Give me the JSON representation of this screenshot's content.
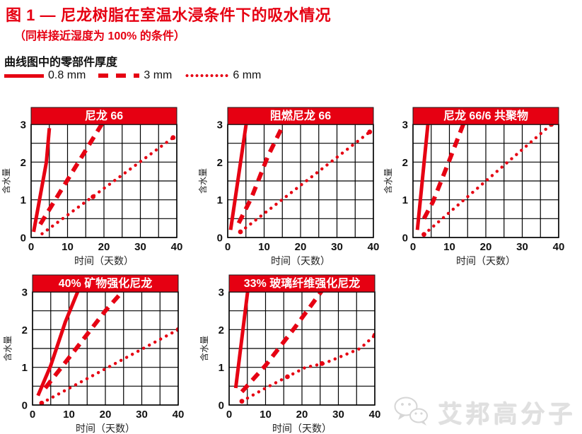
{
  "header": {
    "title": "图 1 — 尼龙树脂在室温水浸条件下的吸水情况",
    "subtitle": "（同样接近湿度为 100% 的条件）",
    "legend_title": "曲线图中的零部件厚度",
    "legend": [
      {
        "style": "solid",
        "label": "0.8 mm"
      },
      {
        "style": "dashed",
        "label": "3 mm"
      },
      {
        "style": "dotted",
        "label": "6 mm"
      }
    ]
  },
  "colors": {
    "accent": "#e60012",
    "text": "#111111",
    "grid": "#000000",
    "bar_text": "#ffffff",
    "watermark": "#e0e0e0"
  },
  "watermark": {
    "text": "艾邦高分子",
    "icon": "wechat-bubbles-icon"
  },
  "chart_data": [
    {
      "type": "line",
      "title": "尼龙 66",
      "xlabel": "时间（天数）",
      "ylabel": "含水量",
      "xlim": [
        0,
        40
      ],
      "ylim": [
        0,
        3
      ],
      "xticks": [
        0,
        10,
        20,
        30,
        40
      ],
      "yticks": [
        0,
        1,
        2,
        3
      ],
      "xgrid_step": 5,
      "ygrid_step": 0.5,
      "grid": true,
      "legend_position": "top-shared",
      "series": [
        {
          "name": "0.8 mm",
          "style": "solid",
          "points": [
            [
              0.7,
              0.15
            ],
            [
              4.2,
              2.0
            ],
            [
              5,
              2.9
            ]
          ]
        },
        {
          "name": "3 mm",
          "style": "dashed",
          "points": [
            [
              2.5,
              0.35
            ],
            [
              20,
              3.1
            ]
          ]
        },
        {
          "name": "6 mm",
          "style": "dotted",
          "points": [
            [
              3,
              0.1
            ],
            [
              39,
              2.65
            ]
          ],
          "markers": [
            [
              17,
              1.08
            ],
            [
              39,
              2.65
            ]
          ]
        }
      ]
    },
    {
      "type": "line",
      "title": "阻燃尼龙 66",
      "xlabel": "时间（天数）",
      "ylabel": "含水量",
      "xlim": [
        0,
        40
      ],
      "ylim": [
        0,
        3
      ],
      "xticks": [
        0,
        10,
        20,
        30,
        40
      ],
      "yticks": [
        0,
        1,
        2,
        3
      ],
      "xgrid_step": 5,
      "ygrid_step": 0.5,
      "grid": true,
      "legend_position": "top-shared",
      "series": [
        {
          "name": "0.8 mm",
          "style": "solid",
          "points": [
            [
              0.8,
              0.2
            ],
            [
              5.2,
              3.1
            ]
          ]
        },
        {
          "name": "3 mm",
          "style": "dashed",
          "points": [
            [
              3,
              0.38
            ],
            [
              6.5,
              1.05
            ],
            [
              11,
              2.15
            ],
            [
              15.8,
              3.1
            ]
          ]
        },
        {
          "name": "6 mm",
          "style": "dotted",
          "points": [
            [
              3.5,
              0.15
            ],
            [
              39,
              2.8
            ]
          ],
          "markers": [
            [
              3.5,
              0.15
            ],
            [
              39,
              2.8
            ]
          ]
        }
      ]
    },
    {
      "type": "line",
      "title": "尼龙 66/6 共聚物",
      "xlabel": "时间（天数）",
      "ylabel": "含水量",
      "xlim": [
        0,
        40
      ],
      "ylim": [
        0,
        3
      ],
      "xticks": [
        0,
        10,
        20,
        30,
        40
      ],
      "yticks": [
        0,
        1,
        2,
        3
      ],
      "xgrid_step": 5,
      "ygrid_step": 0.5,
      "grid": true,
      "legend_position": "top-shared",
      "series": [
        {
          "name": "0.8 mm",
          "style": "solid",
          "points": [
            [
              1.2,
              0.2
            ],
            [
              4.2,
              3.1
            ]
          ]
        },
        {
          "name": "3 mm",
          "style": "dashed",
          "points": [
            [
              3,
              0.5
            ],
            [
              5.5,
              0.95
            ],
            [
              10,
              2.05
            ],
            [
              14.2,
              3.1
            ]
          ]
        },
        {
          "name": "6 mm",
          "style": "dotted",
          "points": [
            [
              3,
              0.08
            ],
            [
              38,
              3.0
            ]
          ],
          "markers": [
            [
              3,
              0.08
            ],
            [
              38,
              3.0
            ]
          ]
        }
      ]
    },
    {
      "type": "line",
      "title": "40% 矿物强化尼龙",
      "xlabel": "时间（天数）",
      "ylabel": "含水量",
      "xlim": [
        0,
        40
      ],
      "ylim": [
        0,
        3
      ],
      "xticks": [
        0,
        10,
        20,
        30,
        40
      ],
      "yticks": [
        0,
        1,
        2,
        3
      ],
      "xgrid_step": 5,
      "ygrid_step": 0.5,
      "grid": true,
      "legend_position": "top-shared",
      "series": [
        {
          "name": "0.8 mm",
          "style": "solid",
          "points": [
            [
              1.5,
              0.25
            ],
            [
              5,
              1.05
            ],
            [
              9,
              2.2
            ],
            [
              12.8,
              3.1
            ]
          ]
        },
        {
          "name": "3 mm",
          "style": "dashed",
          "points": [
            [
              3.5,
              0.45
            ],
            [
              12,
              1.5
            ],
            [
              20,
              2.5
            ],
            [
              25.5,
              3.1
            ]
          ]
        },
        {
          "name": "6 mm",
          "style": "dotted",
          "points": [
            [
              2.5,
              0.05
            ],
            [
              40,
              2.0
            ]
          ],
          "markers": [
            [
              2.5,
              0.05
            ],
            [
              40,
              2.0
            ]
          ]
        }
      ]
    },
    {
      "type": "line",
      "title": "33% 玻璃纤维强化尼龙",
      "xlabel": "时间（天数）",
      "ylabel": "含水量",
      "xlim": [
        0,
        40
      ],
      "ylim": [
        0,
        3
      ],
      "xticks": [
        0,
        10,
        20,
        30,
        40
      ],
      "yticks": [
        0,
        1,
        2,
        3
      ],
      "xgrid_step": 5,
      "ygrid_step": 0.5,
      "grid": true,
      "legend_position": "top-shared",
      "series": [
        {
          "name": "0.8 mm",
          "style": "solid",
          "points": [
            [
              1.8,
              0.45
            ],
            [
              5.2,
              3.1
            ]
          ]
        },
        {
          "name": "3 mm",
          "style": "dashed",
          "points": [
            [
              3.5,
              0.35
            ],
            [
              10,
              1.05
            ],
            [
              18,
              2.05
            ],
            [
              26,
              3.1
            ]
          ]
        },
        {
          "name": "6 mm",
          "style": "dotted",
          "points": [
            [
              3.5,
              0.1
            ],
            [
              10,
              0.45
            ],
            [
              16,
              0.75
            ],
            [
              21,
              1.0
            ],
            [
              26,
              1.1
            ],
            [
              31,
              1.3
            ],
            [
              36,
              1.5
            ],
            [
              40,
              1.85
            ]
          ],
          "markers": [
            [
              3.5,
              0.1
            ],
            [
              16,
              0.75
            ],
            [
              25.5,
              1.1
            ],
            [
              40,
              1.85
            ]
          ]
        }
      ]
    }
  ]
}
